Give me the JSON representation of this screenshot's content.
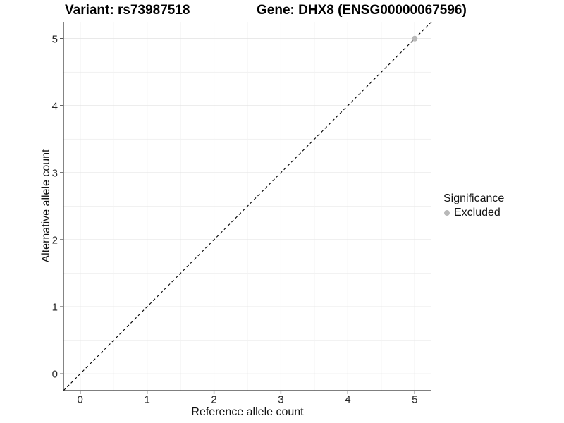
{
  "chart_data": {
    "type": "scatter",
    "title_left": "Variant: rs73987518",
    "title_right": "Gene: DHX8 (ENSG00000067596)",
    "xlabel": "Reference allele count",
    "ylabel": "Alternative allele count",
    "xlim": [
      -0.25,
      5.25
    ],
    "ylim": [
      -0.25,
      5.25
    ],
    "x_ticks": [
      0,
      1,
      2,
      3,
      4,
      5
    ],
    "y_ticks": [
      0,
      1,
      2,
      3,
      4,
      5
    ],
    "x_minor": [
      0.5,
      1.5,
      2.5,
      3.5,
      4.5
    ],
    "y_minor": [
      0.5,
      1.5,
      2.5,
      3.5,
      4.5
    ],
    "grid": "major+minor",
    "series": [
      {
        "name": "Excluded",
        "color": "#b9b9b9",
        "points": [
          {
            "x": 5,
            "y": 5
          }
        ]
      }
    ],
    "reference_line": {
      "kind": "identity y=x",
      "slope": 1,
      "intercept": 0,
      "linetype": "dashed",
      "color": "#000000"
    },
    "legend": {
      "title": "Significance",
      "position": "right",
      "items": [
        {
          "label": "Excluded",
          "color": "#b9b9b9",
          "marker": "circle"
        }
      ]
    },
    "colors": {
      "background": "#ffffff",
      "grid_major": "#e2e2e2",
      "grid_minor": "#f1f1f1",
      "axis": "#333333",
      "tick_text": "#262626",
      "point": "#b9b9b9"
    }
  }
}
